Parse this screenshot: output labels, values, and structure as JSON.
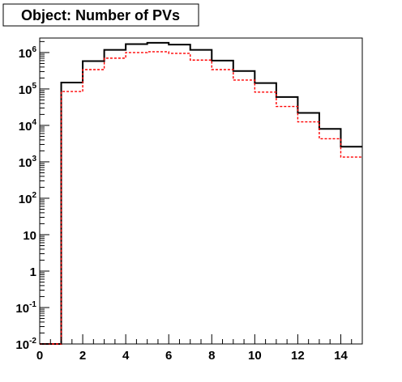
{
  "chart_data": {
    "type": "step-histogram",
    "title": "Object: Number of PVs",
    "xlabel": "",
    "ylabel": "",
    "xlim": [
      0,
      15
    ],
    "ylim": [
      0.01,
      2500000
    ],
    "y_scale": "log",
    "grid": false,
    "legend": "none",
    "x_ticks": [
      "0",
      "2",
      "4",
      "6",
      "8",
      "10",
      "12",
      "14"
    ],
    "y_ticks": [
      {
        "base": "10",
        "exp": "-2",
        "value": 0.01
      },
      {
        "base": "10",
        "exp": "-1",
        "value": 0.1
      },
      {
        "base": "1",
        "exp": "",
        "value": 1
      },
      {
        "base": "10",
        "exp": "",
        "value": 10
      },
      {
        "base": "10",
        "exp": "2",
        "value": 100
      },
      {
        "base": "10",
        "exp": "3",
        "value": 1000
      },
      {
        "base": "10",
        "exp": "4",
        "value": 10000
      },
      {
        "base": "10",
        "exp": "5",
        "value": 100000
      },
      {
        "base": "10",
        "exp": "6",
        "value": 1000000
      }
    ],
    "bin_edges": [
      0,
      1,
      2,
      3,
      4,
      5,
      6,
      7,
      8,
      9,
      10,
      11,
      12,
      13,
      14,
      15
    ],
    "series": [
      {
        "color": "#000000",
        "style": "solid",
        "values": [
          0,
          150000,
          580000,
          1180000,
          1700000,
          1850000,
          1650000,
          1180000,
          600000,
          310000,
          145000,
          60000,
          22000,
          8000,
          2600
        ]
      },
      {
        "color": "#ff0000",
        "style": "dashed",
        "values": [
          0,
          85000,
          340000,
          700000,
          1000000,
          1050000,
          950000,
          620000,
          340000,
          175000,
          82000,
          33000,
          12500,
          4300,
          1350
        ]
      }
    ]
  }
}
